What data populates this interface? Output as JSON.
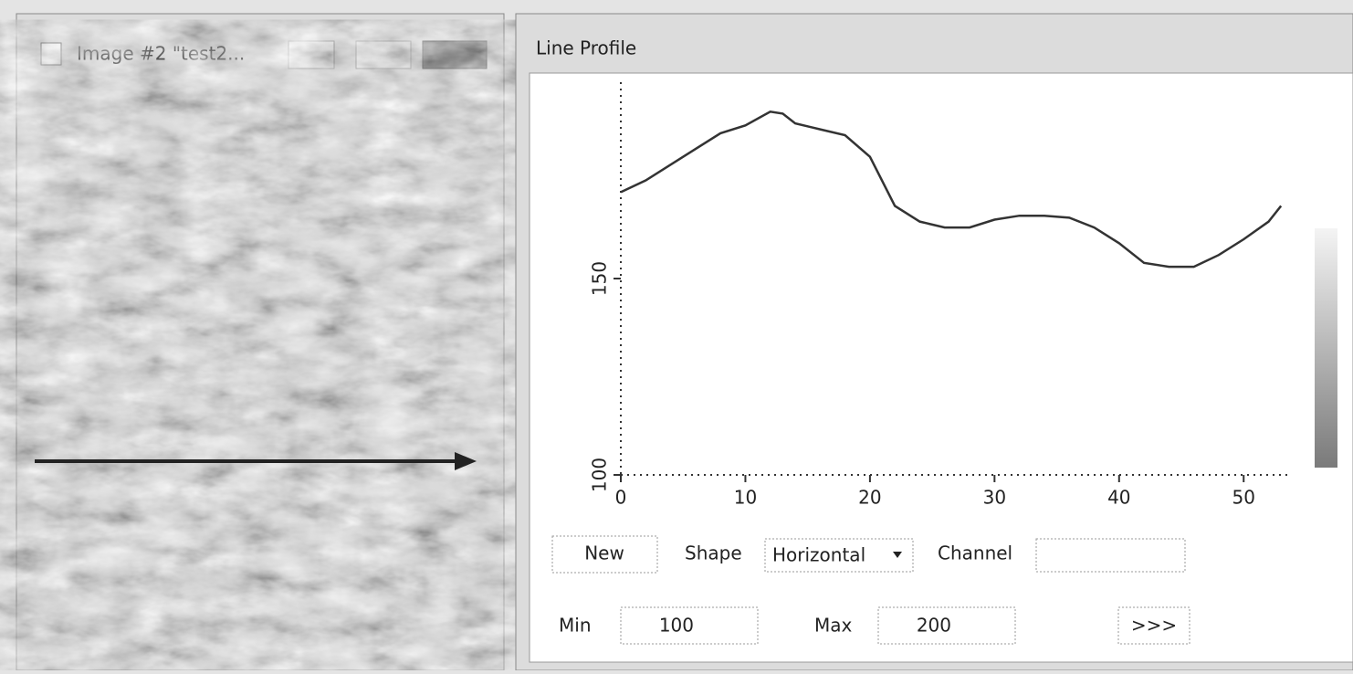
{
  "image_window": {
    "title": "Image #2 \"test2..."
  },
  "profile_window": {
    "title": "Line Profile",
    "controls": {
      "new": "New",
      "shape_label": "Shape",
      "shape_value": "Horizontal",
      "channel_label": "Channel",
      "min_label": "Min",
      "min_value": 100,
      "max_label": "Max",
      "max_value": 200,
      "more": ">>>"
    }
  },
  "chart_data": {
    "type": "line",
    "color": "#333333",
    "x": [
      0,
      2,
      5,
      8,
      10,
      12,
      13,
      14,
      16,
      18,
      20,
      22,
      24,
      26,
      28,
      30,
      32,
      34,
      36,
      38,
      40,
      42,
      44,
      46,
      48,
      50,
      52,
      53
    ],
    "values": [
      172,
      175,
      181,
      187,
      189,
      192.5,
      192,
      189.5,
      188,
      186.5,
      181,
      168.5,
      164.5,
      163,
      163,
      165,
      166,
      166,
      165.5,
      163,
      159,
      154,
      153,
      153,
      156,
      160,
      164.5,
      168.5
    ],
    "xlim": [
      0,
      53.5
    ],
    "xticks": [
      0,
      10,
      20,
      30,
      40,
      50
    ],
    "ylim": [
      100,
      200
    ],
    "yticks": [
      100,
      150
    ]
  }
}
